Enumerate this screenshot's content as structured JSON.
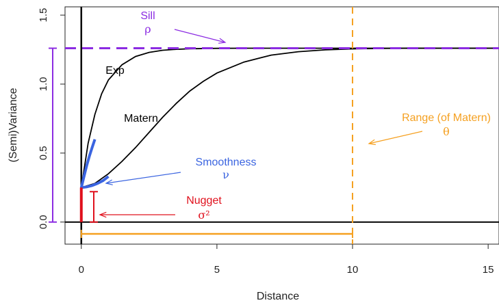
{
  "chart_data": {
    "type": "line",
    "xlabel": "Distance",
    "ylabel": "(Semi)Variance",
    "xlim": [
      -0.6,
      15.4
    ],
    "ylim": [
      -0.16,
      1.56
    ],
    "x_ticks": [
      0,
      5,
      10,
      15
    ],
    "y_ticks": [
      0.0,
      0.5,
      1.0,
      1.5
    ],
    "x_tick_labels": [
      "0",
      "5",
      "10",
      "15"
    ],
    "y_tick_labels": [
      "0.0",
      "0.5",
      "1.0",
      "1.5"
    ],
    "nugget": 0.25,
    "sill": 1.26,
    "range": 10,
    "series": [
      {
        "name": "Exp",
        "x": [
          0,
          0.25,
          0.5,
          0.75,
          1,
          1.5,
          2,
          2.5,
          3,
          3.5,
          4,
          5,
          6,
          7,
          8,
          10,
          12,
          15.4
        ],
        "y": [
          0.25,
          0.57,
          0.78,
          0.93,
          1.03,
          1.14,
          1.2,
          1.23,
          1.245,
          1.252,
          1.256,
          1.259,
          1.26,
          1.26,
          1.26,
          1.26,
          1.26,
          1.26
        ]
      },
      {
        "name": "Matern",
        "x": [
          0,
          0.5,
          1,
          1.5,
          2,
          2.5,
          3,
          3.5,
          4,
          4.5,
          5,
          6,
          7,
          8,
          9,
          10,
          11,
          12,
          15.4
        ],
        "y": [
          0.25,
          0.28,
          0.35,
          0.44,
          0.54,
          0.65,
          0.76,
          0.86,
          0.95,
          1.02,
          1.08,
          1.16,
          1.21,
          1.235,
          1.248,
          1.255,
          1.258,
          1.26,
          1.26
        ]
      }
    ],
    "smoothness_segments": [
      {
        "x": [
          0,
          0.1,
          0.2,
          0.3,
          0.4,
          0.5
        ],
        "y": [
          0.25,
          0.33,
          0.41,
          0.48,
          0.54,
          0.6
        ]
      },
      {
        "x": [
          0,
          0.2,
          0.4,
          0.6,
          0.8,
          1.0
        ],
        "y": [
          0.25,
          0.255,
          0.265,
          0.28,
          0.3,
          0.33
        ]
      }
    ],
    "annotations": {
      "sill": {
        "label": "Sill",
        "symbol": "ρ"
      },
      "range": {
        "label": "Range (of Matern)",
        "symbol": "θ"
      },
      "smoothness": {
        "label": "Smoothness",
        "symbol": "ν"
      },
      "nugget": {
        "label": "Nugget",
        "symbol": "σ²"
      },
      "exp": "Exp",
      "matern": "Matern"
    },
    "colors": {
      "curve": "#000000",
      "sill": "#8b2be2",
      "range": "#f5a020",
      "smoothness": "#3a64e0",
      "nugget": "#e0101c"
    }
  }
}
